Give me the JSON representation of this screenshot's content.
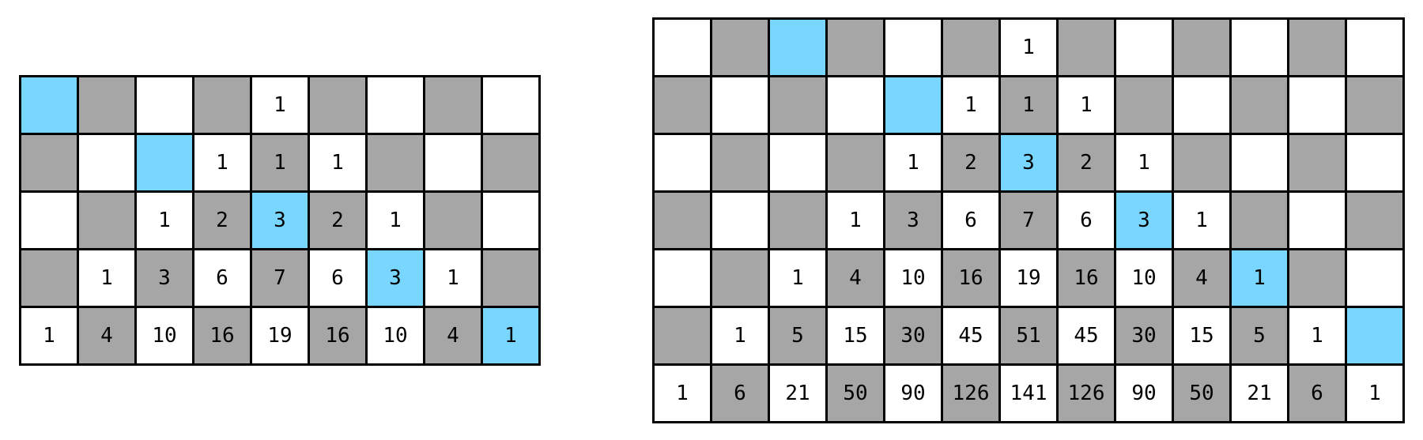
{
  "colors": {
    "white": "#ffffff",
    "gray": "#a6a6a6",
    "highlight": "#78d6ff",
    "border": "#000000"
  },
  "grids": [
    {
      "id": "left",
      "rows": [
        [
          "",
          "",
          "",
          "",
          "1",
          "",
          "",
          "",
          ""
        ],
        [
          "",
          "",
          "",
          "1",
          "1",
          "1",
          "",
          "",
          ""
        ],
        [
          "",
          "",
          "1",
          "2",
          "3",
          "2",
          "1",
          "",
          ""
        ],
        [
          "",
          "1",
          "3",
          "6",
          "7",
          "6",
          "3",
          "1",
          ""
        ],
        [
          "1",
          "4",
          "10",
          "16",
          "19",
          "16",
          "10",
          "4",
          "1"
        ]
      ],
      "highlighted": [
        [
          0,
          0
        ],
        [
          1,
          2
        ],
        [
          2,
          4
        ],
        [
          3,
          6
        ],
        [
          4,
          8
        ]
      ]
    },
    {
      "id": "right",
      "rows": [
        [
          "",
          "",
          "",
          "",
          "",
          "",
          "1",
          "",
          "",
          "",
          "",
          "",
          ""
        ],
        [
          "",
          "",
          "",
          "",
          "",
          "1",
          "1",
          "1",
          "",
          "",
          "",
          "",
          ""
        ],
        [
          "",
          "",
          "",
          "",
          "1",
          "2",
          "3",
          "2",
          "1",
          "",
          "",
          "",
          ""
        ],
        [
          "",
          "",
          "",
          "1",
          "3",
          "6",
          "7",
          "6",
          "3",
          "1",
          "",
          "",
          ""
        ],
        [
          "",
          "",
          "1",
          "4",
          "10",
          "16",
          "19",
          "16",
          "10",
          "4",
          "1",
          "",
          ""
        ],
        [
          "",
          "1",
          "5",
          "15",
          "30",
          "45",
          "51",
          "45",
          "30",
          "15",
          "5",
          "1",
          ""
        ],
        [
          "1",
          "6",
          "21",
          "50",
          "90",
          "126",
          "141",
          "126",
          "90",
          "50",
          "21",
          "6",
          "1"
        ]
      ],
      "highlighted": [
        [
          0,
          2
        ],
        [
          1,
          4
        ],
        [
          2,
          6
        ],
        [
          3,
          8
        ],
        [
          4,
          10
        ],
        [
          5,
          12
        ]
      ]
    }
  ]
}
